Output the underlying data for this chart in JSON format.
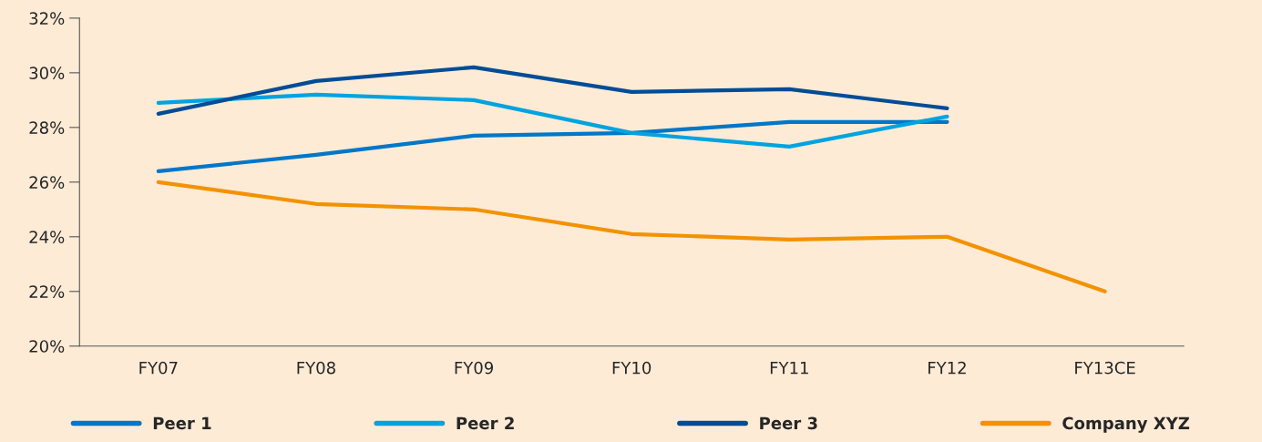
{
  "chart_data": {
    "type": "line",
    "categories": [
      "FY07",
      "FY08",
      "FY09",
      "FY10",
      "FY11",
      "FY12",
      "FY13CE"
    ],
    "series": [
      {
        "name": "Peer 1",
        "color": "#0077c8",
        "values": [
          26.4,
          27.0,
          27.7,
          27.8,
          28.2,
          28.2,
          null
        ]
      },
      {
        "name": "Peer 2",
        "color": "#00a3e0",
        "values": [
          28.9,
          29.2,
          29.0,
          27.8,
          27.3,
          28.4,
          null
        ]
      },
      {
        "name": "Peer 3",
        "color": "#004c97",
        "values": [
          28.5,
          29.7,
          30.2,
          29.3,
          29.4,
          28.7,
          null
        ]
      },
      {
        "name": "Company XYZ",
        "color": "#f39200",
        "values": [
          26.0,
          25.2,
          25.0,
          24.1,
          23.9,
          24.0,
          22.0
        ]
      }
    ],
    "ylim": [
      20,
      32
    ],
    "yticks": [
      {
        "value": 20,
        "label": "20%"
      },
      {
        "value": 22,
        "label": "22%"
      },
      {
        "value": 24,
        "label": "24%"
      },
      {
        "value": 26,
        "label": "26%"
      },
      {
        "value": 28,
        "label": "28%"
      },
      {
        "value": 30,
        "label": "30%"
      },
      {
        "value": 32,
        "label": "32%"
      }
    ],
    "grid": false,
    "legend": "bottom",
    "marker": "none",
    "line_style": "solid"
  }
}
